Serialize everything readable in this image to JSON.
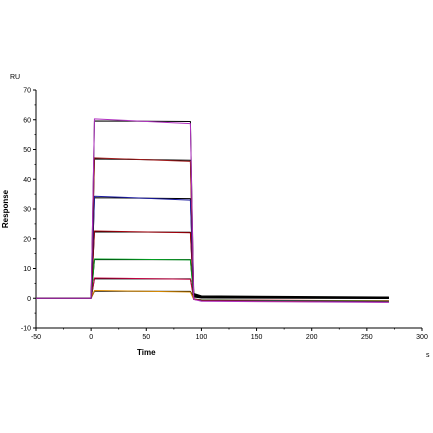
{
  "chart_data": {
    "type": "line",
    "title": "",
    "xlabel": "Time",
    "ylabel": "Response",
    "x_unit": "s",
    "y_unit": "RU",
    "xlim": [
      -50,
      300
    ],
    "ylim": [
      -10,
      70
    ],
    "x_ticks": [
      -50,
      0,
      50,
      100,
      150,
      200,
      250,
      300
    ],
    "y_ticks": [
      -10,
      0,
      10,
      20,
      30,
      40,
      50,
      60,
      70
    ],
    "grid": false,
    "legend": "none",
    "association_start": 0,
    "dissociation_start": 90,
    "end_time": 270,
    "series": [
      {
        "color": "#000000",
        "values": [
          [
            -50,
            0
          ],
          [
            0,
            0
          ],
          [
            3,
            2.4
          ],
          [
            90,
            2.3
          ],
          [
            93,
            0.4
          ],
          [
            100,
            0.1
          ],
          [
            270,
            -0.1
          ]
        ]
      },
      {
        "color": "#d98a00",
        "values": [
          [
            -50,
            0
          ],
          [
            0,
            0
          ],
          [
            3,
            2.6
          ],
          [
            90,
            2.1
          ],
          [
            93,
            -0.4
          ],
          [
            100,
            -0.6
          ],
          [
            270,
            -0.8
          ]
        ]
      },
      {
        "color": "#000000",
        "values": [
          [
            -50,
            0
          ],
          [
            0,
            0
          ],
          [
            3,
            6.5
          ],
          [
            90,
            6.5
          ],
          [
            93,
            0.6
          ],
          [
            100,
            0.2
          ],
          [
            270,
            0.0
          ]
        ]
      },
      {
        "color": "#c40040",
        "values": [
          [
            -50,
            0
          ],
          [
            0,
            0
          ],
          [
            3,
            6.8
          ],
          [
            90,
            6.4
          ],
          [
            93,
            -0.3
          ],
          [
            100,
            -0.5
          ],
          [
            270,
            -0.9
          ]
        ]
      },
      {
        "color": "#000000",
        "values": [
          [
            -50,
            0
          ],
          [
            0,
            0
          ],
          [
            3,
            13.0
          ],
          [
            90,
            13.0
          ],
          [
            93,
            0.8
          ],
          [
            100,
            0.3
          ],
          [
            270,
            0.1
          ]
        ]
      },
      {
        "color": "#00a020",
        "values": [
          [
            -50,
            0
          ],
          [
            0,
            0
          ],
          [
            3,
            13.2
          ],
          [
            90,
            12.9
          ],
          [
            93,
            -0.2
          ],
          [
            100,
            -0.6
          ],
          [
            270,
            -1.0
          ]
        ]
      },
      {
        "color": "#000000",
        "values": [
          [
            -50,
            0
          ],
          [
            0,
            0
          ],
          [
            3,
            22.3
          ],
          [
            90,
            22.2
          ],
          [
            93,
            1.0
          ],
          [
            100,
            0.4
          ],
          [
            270,
            0.1
          ]
        ]
      },
      {
        "color": "#a0000a",
        "values": [
          [
            -50,
            0
          ],
          [
            0,
            0
          ],
          [
            3,
            22.6
          ],
          [
            90,
            22.0
          ],
          [
            93,
            -0.2
          ],
          [
            100,
            -0.7
          ],
          [
            270,
            -1.2
          ]
        ]
      },
      {
        "color": "#000000",
        "values": [
          [
            -50,
            0
          ],
          [
            0,
            0
          ],
          [
            3,
            33.8
          ],
          [
            90,
            33.5
          ],
          [
            93,
            1.2
          ],
          [
            100,
            0.5
          ],
          [
            270,
            0.2
          ]
        ]
      },
      {
        "color": "#1a1aa0",
        "values": [
          [
            -50,
            0
          ],
          [
            0,
            0
          ],
          [
            3,
            34.3
          ],
          [
            90,
            33.0
          ],
          [
            93,
            -0.4
          ],
          [
            100,
            -0.8
          ],
          [
            270,
            -1.2
          ]
        ]
      },
      {
        "color": "#000000",
        "values": [
          [
            -50,
            0
          ],
          [
            0,
            0
          ],
          [
            3,
            46.8
          ],
          [
            90,
            46.4
          ],
          [
            93,
            1.4
          ],
          [
            100,
            0.6
          ],
          [
            270,
            0.2
          ]
        ]
      },
      {
        "color": "#a01a1a",
        "values": [
          [
            -50,
            0
          ],
          [
            0,
            0
          ],
          [
            3,
            47.2
          ],
          [
            90,
            46.0
          ],
          [
            93,
            -0.3
          ],
          [
            100,
            -0.9
          ],
          [
            270,
            -1.3
          ]
        ]
      },
      {
        "color": "#000000",
        "values": [
          [
            -50,
            0
          ],
          [
            0,
            0
          ],
          [
            3,
            59.6
          ],
          [
            90,
            59.4
          ],
          [
            93,
            1.6
          ],
          [
            100,
            0.8
          ],
          [
            270,
            0.4
          ]
        ]
      },
      {
        "color": "#b030c0",
        "values": [
          [
            -50,
            0
          ],
          [
            0,
            0
          ],
          [
            3,
            60.3
          ],
          [
            90,
            58.7
          ],
          [
            93,
            -0.4
          ],
          [
            100,
            -1.0
          ],
          [
            270,
            -1.4
          ]
        ]
      }
    ]
  }
}
